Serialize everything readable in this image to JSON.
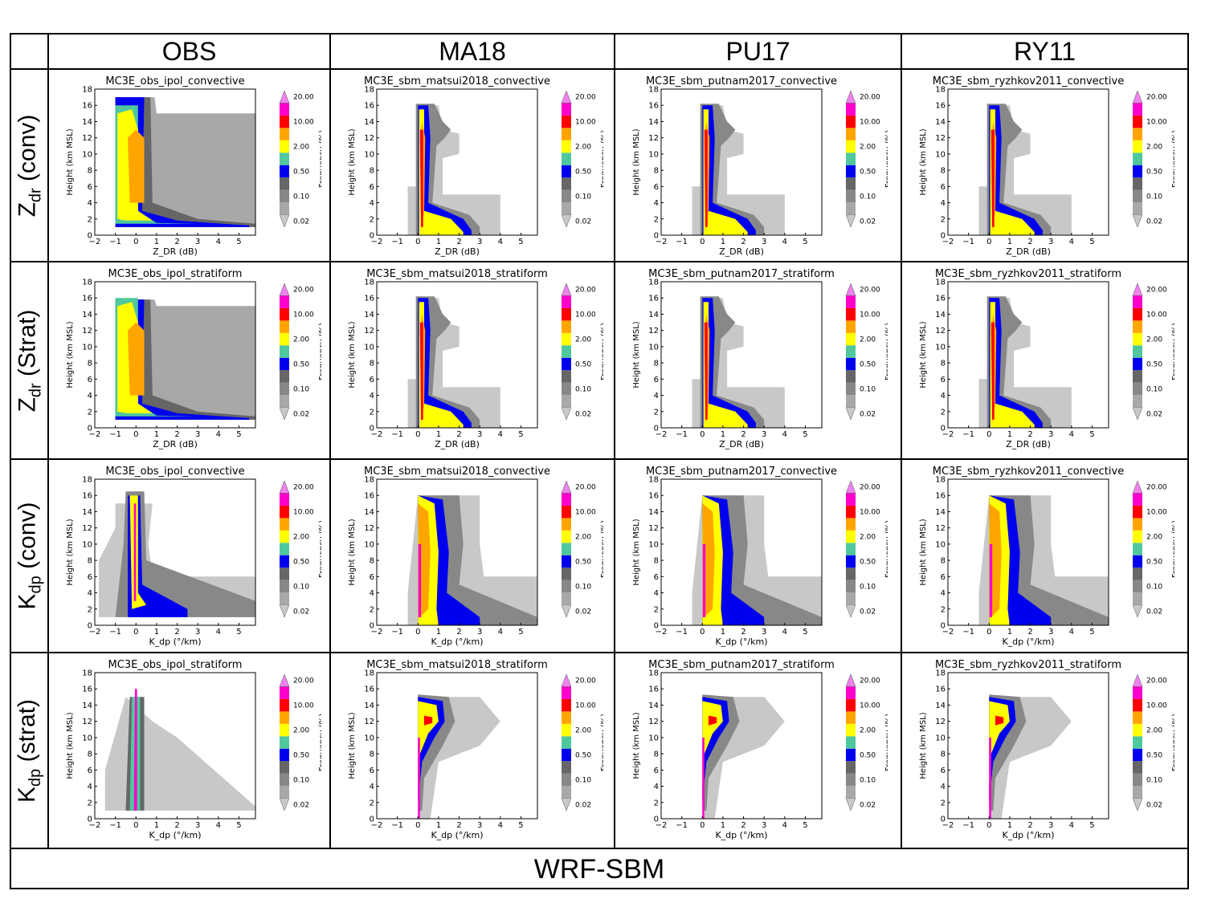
{
  "column_headers": [
    "OBS",
    "MA18",
    "PU17",
    "RY11"
  ],
  "rows": [
    {
      "main": "Z",
      "sub": "dr",
      "suffix": " (conv)"
    },
    {
      "main": "Z",
      "sub": "dr",
      "suffix": " (Strat)"
    },
    {
      "main": "K",
      "sub": "dp",
      "suffix": " (conv)"
    },
    {
      "main": "K",
      "sub": "dp",
      "suffix": " (strat)"
    }
  ],
  "footer": "WRF-SBM",
  "colorbar": {
    "label": "Frequency (%)",
    "levels": [
      "0.02",
      "0.10",
      "0.50",
      "2.00",
      "10.00",
      "20.00"
    ],
    "colors": [
      "#c8c8c8",
      "#a8a8a8",
      "#888888",
      "#666666",
      "#0000ee",
      "#4fc89e",
      "#ffff00",
      "#ffa500",
      "#ff0000",
      "#ff00cc",
      "#ee82ee"
    ]
  },
  "axes": {
    "ylabel": "Height (km MSL)",
    "xlabel_zdr": "Z_DR (dB)",
    "xlabel_kdp": "K_dp (°/km)",
    "xticks": [
      "−2",
      "−1",
      "0",
      "1",
      "2",
      "3",
      "4",
      "5"
    ],
    "yticks": [
      "0",
      "2",
      "4",
      "6",
      "8",
      "10",
      "12",
      "14",
      "16",
      "18"
    ],
    "xlim": [
      -2,
      5.8
    ],
    "ylim": [
      0,
      18
    ]
  },
  "chart_data": [
    {
      "type": "heatmap",
      "title": "MC3E_obs_ipol_convective",
      "var": "zdr",
      "source": "obs",
      "regime": "conv",
      "xlabel": "Z_DR (dB)",
      "ylabel": "Height (km MSL)",
      "xlim": [
        -2,
        5.8
      ],
      "ylim": [
        0,
        18
      ]
    },
    {
      "type": "heatmap",
      "title": "MC3E_sbm_matsui2018_convective",
      "var": "zdr",
      "source": "sim",
      "regime": "conv",
      "xlabel": "Z_DR (dB)",
      "ylabel": "Height (km MSL)",
      "xlim": [
        -2,
        5.8
      ],
      "ylim": [
        0,
        18
      ]
    },
    {
      "type": "heatmap",
      "title": "MC3E_sbm_putnam2017_convective",
      "var": "zdr",
      "source": "sim",
      "regime": "conv",
      "xlabel": "Z_DR (dB)",
      "ylabel": "Height (km MSL)",
      "xlim": [
        -2,
        5.8
      ],
      "ylim": [
        0,
        18
      ]
    },
    {
      "type": "heatmap",
      "title": "MC3E_sbm_ryzhkov2011_convective",
      "var": "zdr",
      "source": "sim",
      "regime": "conv",
      "xlabel": "Z_DR (dB)",
      "ylabel": "Height (km MSL)",
      "xlim": [
        -2,
        5.8
      ],
      "ylim": [
        0,
        18
      ]
    },
    {
      "type": "heatmap",
      "title": "MC3E_obs_ipol_stratiform",
      "var": "zdr",
      "source": "obs",
      "regime": "strat",
      "xlabel": "Z_DR (dB)",
      "ylabel": "Height (km MSL)",
      "xlim": [
        -2,
        5.8
      ],
      "ylim": [
        0,
        18
      ]
    },
    {
      "type": "heatmap",
      "title": "MC3E_sbm_matsui2018_stratiform",
      "var": "zdr",
      "source": "sim",
      "regime": "strat",
      "xlabel": "Z_DR (dB)",
      "ylabel": "Height (km MSL)",
      "xlim": [
        -2,
        5.8
      ],
      "ylim": [
        0,
        18
      ]
    },
    {
      "type": "heatmap",
      "title": "MC3E_sbm_putnam2017_stratiform",
      "var": "zdr",
      "source": "sim",
      "regime": "strat",
      "xlabel": "Z_DR (dB)",
      "ylabel": "Height (km MSL)",
      "xlim": [
        -2,
        5.8
      ],
      "ylim": [
        0,
        18
      ]
    },
    {
      "type": "heatmap",
      "title": "MC3E_sbm_ryzhkov2011_stratiform",
      "var": "zdr",
      "source": "sim",
      "regime": "strat",
      "xlabel": "Z_DR (dB)",
      "ylabel": "Height (km MSL)",
      "xlim": [
        -2,
        5.8
      ],
      "ylim": [
        0,
        18
      ]
    },
    {
      "type": "heatmap",
      "title": "MC3E_obs_ipol_convective",
      "var": "kdp",
      "source": "obs",
      "regime": "conv",
      "xlabel": "K_dp (°/km)",
      "ylabel": "Height (km MSL)",
      "xlim": [
        -2,
        5.8
      ],
      "ylim": [
        0,
        18
      ]
    },
    {
      "type": "heatmap",
      "title": "MC3E_sbm_matsui2018_convective",
      "var": "kdp",
      "source": "sim",
      "regime": "conv",
      "xlabel": "K_dp (°/km)",
      "ylabel": "Height (km MSL)",
      "xlim": [
        -2,
        5.8
      ],
      "ylim": [
        0,
        18
      ]
    },
    {
      "type": "heatmap",
      "title": "MC3E_sbm_putnam2017_convective",
      "var": "kdp",
      "source": "sim",
      "regime": "conv",
      "xlabel": "K_dp (°/km)",
      "ylabel": "Height (km MSL)",
      "xlim": [
        -2,
        5.8
      ],
      "ylim": [
        0,
        18
      ]
    },
    {
      "type": "heatmap",
      "title": "MC3E_sbm_ryzhkov2011_convective",
      "var": "kdp",
      "source": "sim",
      "regime": "conv",
      "xlabel": "K_dp (°/km)",
      "ylabel": "Height (km MSL)",
      "xlim": [
        -2,
        5.8
      ],
      "ylim": [
        0,
        18
      ]
    },
    {
      "type": "heatmap",
      "title": "MC3E_obs_ipol_stratiform",
      "var": "kdp",
      "source": "obs",
      "regime": "strat",
      "xlabel": "K_dp (°/km)",
      "ylabel": "Height (km MSL)",
      "xlim": [
        -2,
        5.8
      ],
      "ylim": [
        0,
        18
      ]
    },
    {
      "type": "heatmap",
      "title": "MC3E_sbm_matsui2018_stratiform",
      "var": "kdp",
      "source": "sim",
      "regime": "strat",
      "xlabel": "K_dp (°/km)",
      "ylabel": "Height (km MSL)",
      "xlim": [
        -2,
        5.8
      ],
      "ylim": [
        0,
        18
      ]
    },
    {
      "type": "heatmap",
      "title": "MC3E_sbm_putnam2017_stratiform",
      "var": "kdp",
      "source": "sim",
      "regime": "strat",
      "xlabel": "K_dp (°/km)",
      "ylabel": "Height (km MSL)",
      "xlim": [
        -2,
        5.8
      ],
      "ylim": [
        0,
        18
      ]
    },
    {
      "type": "heatmap",
      "title": "MC3E_sbm_ryzhkov2011_stratiform",
      "var": "kdp",
      "source": "sim",
      "regime": "strat",
      "xlabel": "K_dp (°/km)",
      "ylabel": "Height (km MSL)",
      "xlim": [
        -2,
        5.8
      ],
      "ylim": [
        0,
        18
      ]
    }
  ]
}
